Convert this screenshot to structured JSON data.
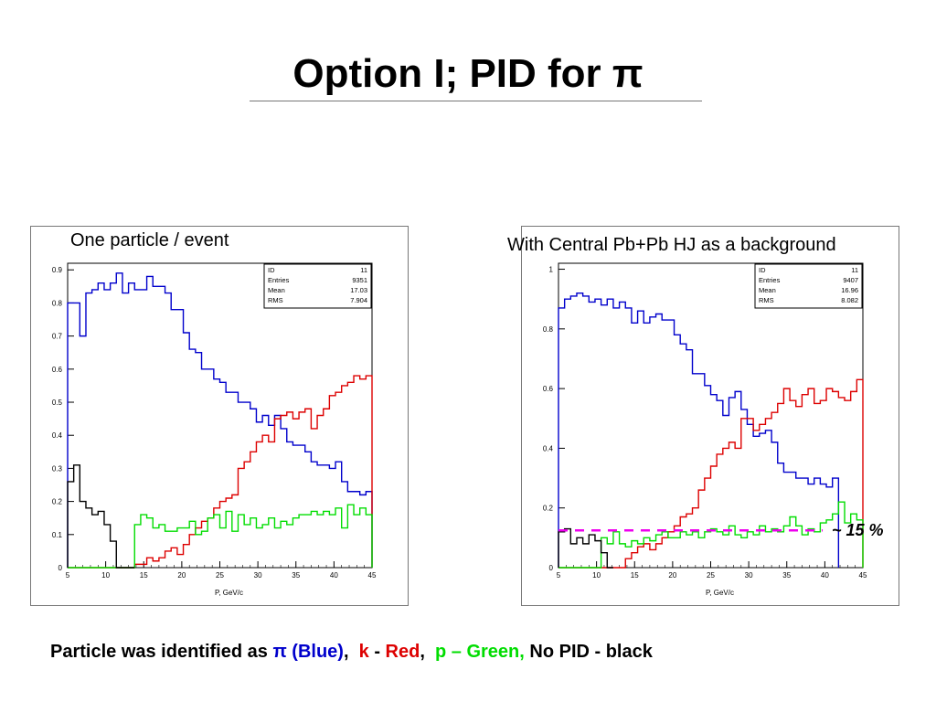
{
  "title": "Option I; PID for π",
  "captions": {
    "left": "One particle  /  event",
    "right": "With Central Pb+Pb HJ as a background"
  },
  "annotation": "~ 15 %",
  "footer": {
    "part1": "Particle was identified as ",
    "pi": "π (Blue)",
    "sep1": ",  ",
    "k": "k",
    "dash1": " - ",
    "red": "Red",
    "sep2": ",  ",
    "p": "p – Green,",
    "nopid": " No PID - black"
  },
  "colors": {
    "pi": "#0000cc",
    "k": "#dd0000",
    "p": "#00dd00",
    "nopid": "#000000",
    "threshold": "#ee00ee"
  },
  "chart_data": [
    {
      "type": "line",
      "style": "step-histogram",
      "xlabel": "P, GeV/c",
      "ylabel": "",
      "xlim": [
        5,
        45
      ],
      "ylim": [
        0,
        0.92
      ],
      "x_ticks": [
        5,
        10,
        15,
        20,
        25,
        30,
        35,
        40,
        45
      ],
      "y_ticks": [
        0,
        0.1,
        0.2,
        0.3,
        0.4,
        0.5,
        0.6,
        0.7,
        0.8,
        0.9
      ],
      "y_tick_labels": [
        "0",
        "0.1",
        "0.2",
        "0.3",
        "0.4",
        "0.5",
        "0.6",
        "0.7",
        "0.8",
        "0.9"
      ],
      "x_tick_labels": [
        "5",
        "10",
        "15",
        "20",
        "25",
        "30",
        "35",
        "40",
        "45"
      ],
      "stats_box": [
        {
          "label": "ID",
          "value": "11"
        },
        {
          "label": "Entries",
          "value": "9351"
        },
        {
          "label": "Mean",
          "value": "17.03"
        },
        {
          "label": "RMS",
          "value": "7.904"
        }
      ],
      "bins": {
        "start": 5,
        "width": 0.8
      },
      "series": [
        {
          "key": "pi",
          "values": [
            0.8,
            0.8,
            0.7,
            0.83,
            0.84,
            0.86,
            0.84,
            0.86,
            0.89,
            0.83,
            0.86,
            0.84,
            0.84,
            0.88,
            0.85,
            0.85,
            0.83,
            0.78,
            0.78,
            0.71,
            0.66,
            0.65,
            0.6,
            0.6,
            0.57,
            0.56,
            0.53,
            0.53,
            0.5,
            0.5,
            0.48,
            0.44,
            0.46,
            0.43,
            0.46,
            0.42,
            0.38,
            0.37,
            0.37,
            0.35,
            0.32,
            0.31,
            0.31,
            0.3,
            0.32,
            0.26,
            0.23,
            0.23,
            0.22,
            0.23
          ]
        },
        {
          "key": "k",
          "values": [
            0,
            0,
            0,
            0,
            0,
            0,
            0,
            0,
            0,
            0.0,
            0.0,
            0.01,
            0.01,
            0.03,
            0.02,
            0.03,
            0.05,
            0.06,
            0.04,
            0.07,
            0.1,
            0.12,
            0.14,
            0.15,
            0.18,
            0.2,
            0.21,
            0.22,
            0.3,
            0.32,
            0.35,
            0.38,
            0.4,
            0.38,
            0.45,
            0.46,
            0.47,
            0.45,
            0.47,
            0.48,
            0.42,
            0.46,
            0.48,
            0.52,
            0.53,
            0.55,
            0.56,
            0.58,
            0.57,
            0.58
          ]
        },
        {
          "key": "p",
          "values": [
            0,
            0,
            0,
            0,
            0,
            0,
            0,
            0,
            0,
            0,
            0.0,
            0.13,
            0.16,
            0.15,
            0.12,
            0.13,
            0.11,
            0.11,
            0.12,
            0.12,
            0.14,
            0.1,
            0.11,
            0.15,
            0.16,
            0.12,
            0.17,
            0.11,
            0.16,
            0.13,
            0.15,
            0.12,
            0.13,
            0.15,
            0.12,
            0.14,
            0.13,
            0.15,
            0.16,
            0.16,
            0.17,
            0.16,
            0.17,
            0.16,
            0.18,
            0.12,
            0.19,
            0.16,
            0.18,
            0.16
          ]
        },
        {
          "key": "nopid",
          "values": [
            0.26,
            0.31,
            0.2,
            0.18,
            0.16,
            0.17,
            0.13,
            0.08,
            0,
            0,
            0
          ]
        }
      ]
    },
    {
      "type": "line",
      "style": "step-histogram",
      "xlabel": "P, GeV/c",
      "ylabel": "",
      "xlim": [
        5,
        45
      ],
      "ylim": [
        0,
        1.02
      ],
      "x_ticks": [
        5,
        10,
        15,
        20,
        25,
        30,
        35,
        40,
        45
      ],
      "y_ticks": [
        0,
        0.2,
        0.4,
        0.6,
        0.8,
        1
      ],
      "y_tick_labels": [
        "0",
        "0.2",
        "0.4",
        "0.6",
        "0.8",
        "1"
      ],
      "x_tick_labels": [
        "5",
        "10",
        "15",
        "20",
        "25",
        "30",
        "35",
        "40",
        "45"
      ],
      "stats_box": [
        {
          "label": "ID",
          "value": "11"
        },
        {
          "label": "Entries",
          "value": "9407"
        },
        {
          "label": "Mean",
          "value": "16.96"
        },
        {
          "label": "RMS",
          "value": "8.082"
        }
      ],
      "threshold": 0.125,
      "bins": {
        "start": 5,
        "width": 0.8
      },
      "series": [
        {
          "key": "pi",
          "values": [
            0.87,
            0.9,
            0.91,
            0.92,
            0.91,
            0.89,
            0.9,
            0.88,
            0.9,
            0.87,
            0.89,
            0.87,
            0.82,
            0.86,
            0.82,
            0.84,
            0.85,
            0.83,
            0.83,
            0.78,
            0.75,
            0.73,
            0.65,
            0.65,
            0.61,
            0.58,
            0.56,
            0.51,
            0.57,
            0.59,
            0.53,
            0.48,
            0.44,
            0.45,
            0.46,
            0.42,
            0.35,
            0.32,
            0.32,
            0.3,
            0.3,
            0.28,
            0.3,
            0.28,
            0.27,
            0.3
          ]
        },
        {
          "key": "k",
          "values": [
            0,
            0,
            0,
            0,
            0,
            0,
            0,
            0,
            0,
            0,
            0,
            0.03,
            0.05,
            0.07,
            0.08,
            0.06,
            0.08,
            0.1,
            0.12,
            0.14,
            0.17,
            0.18,
            0.2,
            0.26,
            0.3,
            0.34,
            0.38,
            0.4,
            0.42,
            0.4,
            0.5,
            0.5,
            0.46,
            0.48,
            0.5,
            0.52,
            0.55,
            0.6,
            0.56,
            0.54,
            0.58,
            0.6,
            0.55,
            0.56,
            0.6,
            0.59,
            0.57,
            0.56,
            0.59,
            0.63
          ]
        },
        {
          "key": "p",
          "values": [
            0,
            0,
            0,
            0,
            0,
            0,
            0,
            0.1,
            0.08,
            0.12,
            0.08,
            0.07,
            0.09,
            0.08,
            0.1,
            0.09,
            0.11,
            0.12,
            0.1,
            0.1,
            0.12,
            0.11,
            0.12,
            0.1,
            0.12,
            0.13,
            0.12,
            0.11,
            0.14,
            0.11,
            0.1,
            0.12,
            0.11,
            0.14,
            0.12,
            0.13,
            0.12,
            0.14,
            0.17,
            0.14,
            0.11,
            0.13,
            0.12,
            0.15,
            0.16,
            0.18,
            0.22,
            0.15,
            0.18,
            0.16
          ]
        },
        {
          "key": "nopid",
          "values": [
            0.12,
            0.13,
            0.08,
            0.1,
            0.08,
            0.11,
            0.09,
            0.05,
            0.0
          ]
        }
      ]
    }
  ]
}
